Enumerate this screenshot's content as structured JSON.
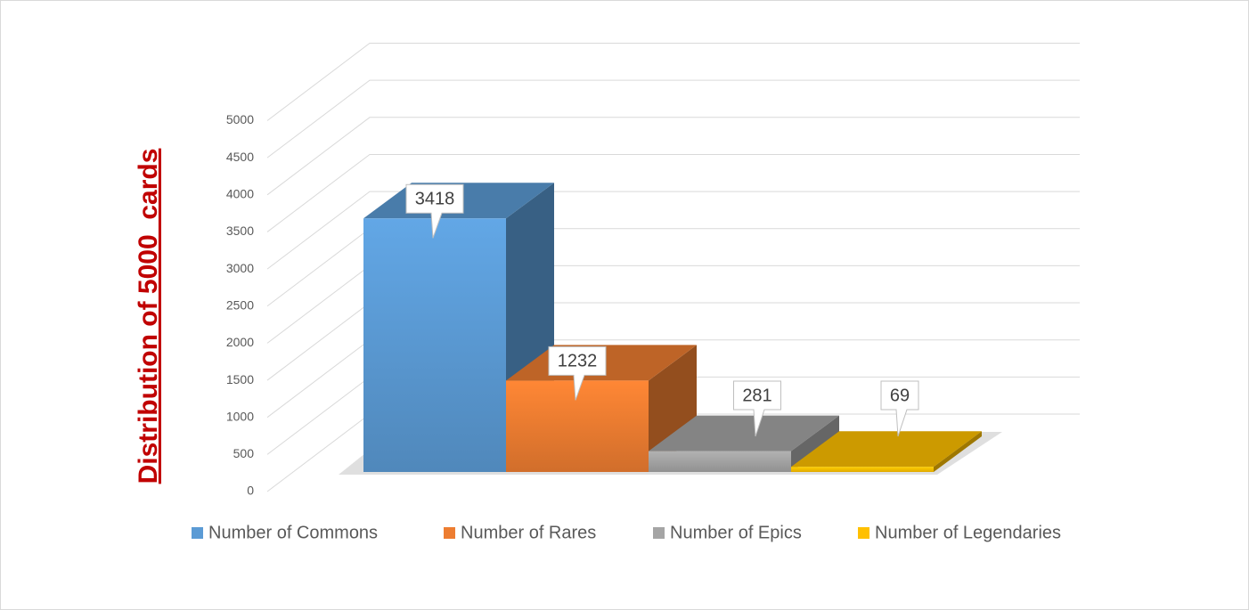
{
  "chart_data": {
    "type": "bar3d",
    "y_label": "Distribution of 5000  cards",
    "categories": [
      null
    ],
    "series": [
      {
        "name": "Number of Commons",
        "color": "#5b9bd5",
        "values": [
          3418
        ]
      },
      {
        "name": "Number of Rares",
        "color": "#ed7d31",
        "values": [
          1232
        ]
      },
      {
        "name": "Number of Epics",
        "color": "#a5a5a5",
        "values": [
          281
        ]
      },
      {
        "name": "Number of Legendaries",
        "color": "#ffc000",
        "values": [
          69
        ]
      }
    ],
    "ylim": [
      0,
      5000
    ],
    "yticks": [
      0,
      500,
      1000,
      1500,
      2000,
      2500,
      3000,
      3500,
      4000,
      4500,
      5000
    ],
    "grid": true,
    "legend": "bottom"
  }
}
